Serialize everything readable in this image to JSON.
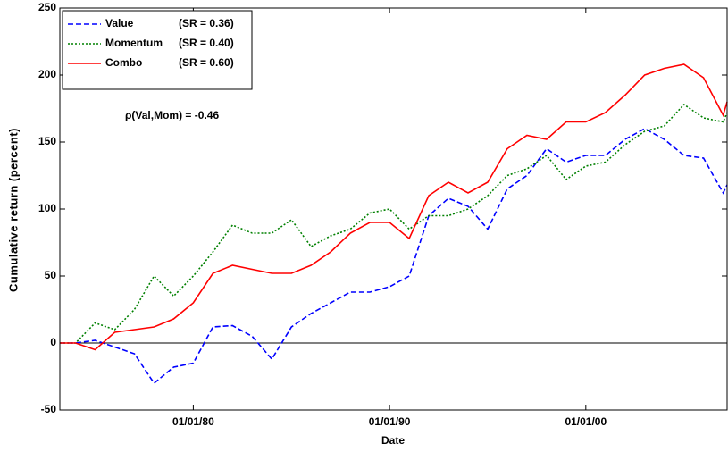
{
  "chart_data": {
    "type": "line",
    "x_label": "Date",
    "y_label": "Cumulative return (percent)",
    "annotation": "ρ(Val,Mom) = -0.46",
    "x": [
      1973.2,
      1974,
      1975,
      1976,
      1977,
      1978,
      1979,
      1980,
      1981,
      1982,
      1983,
      1984,
      1985,
      1986,
      1987,
      1988,
      1989,
      1990,
      1991,
      1992,
      1993,
      1994,
      1995,
      1996,
      1997,
      1998,
      1999,
      2000,
      2001,
      2002,
      2003,
      2004,
      2005,
      2006,
      2007,
      2007.2
    ],
    "series": [
      {
        "name": "Value",
        "sr_label": "(SR = 0.36)",
        "color": "#0000ff",
        "line_style": "dashed",
        "values": [
          0,
          0,
          2,
          -3,
          -8,
          -30,
          -18,
          -15,
          12,
          13,
          5,
          -12,
          12,
          22,
          30,
          38,
          38,
          42,
          50,
          95,
          108,
          102,
          85,
          115,
          125,
          145,
          135,
          140,
          140,
          152,
          160,
          152,
          140,
          138,
          112,
          118
        ]
      },
      {
        "name": "Momentum",
        "sr_label": "(SR = 0.40)",
        "color": "#008000",
        "line_style": "dotted",
        "values": [
          0,
          0,
          15,
          10,
          25,
          50,
          35,
          50,
          68,
          88,
          82,
          82,
          92,
          72,
          80,
          85,
          97,
          100,
          85,
          95,
          95,
          100,
          110,
          125,
          130,
          140,
          122,
          132,
          135,
          148,
          158,
          162,
          178,
          168,
          165,
          172
        ]
      },
      {
        "name": "Combo",
        "sr_label": "(SR = 0.60)",
        "color": "#ff0000",
        "line_style": "solid",
        "values": [
          0,
          0,
          -5,
          8,
          10,
          12,
          18,
          30,
          52,
          58,
          55,
          52,
          52,
          58,
          68,
          82,
          90,
          90,
          78,
          110,
          120,
          112,
          120,
          145,
          155,
          152,
          165,
          165,
          172,
          185,
          200,
          205,
          208,
          198,
          170,
          180
        ]
      }
    ],
    "xlim": [
      1973.2,
      2007.2
    ],
    "xticks": [
      {
        "value": 1980,
        "label": "01/01/80"
      },
      {
        "value": 1990,
        "label": "01/01/90"
      },
      {
        "value": 2000,
        "label": "01/01/00"
      }
    ],
    "ylim": [
      -50,
      250
    ],
    "yticks": [
      -50,
      0,
      50,
      100,
      150,
      200,
      250
    ],
    "zero_line": true,
    "grid": false,
    "legend": "upper left"
  }
}
